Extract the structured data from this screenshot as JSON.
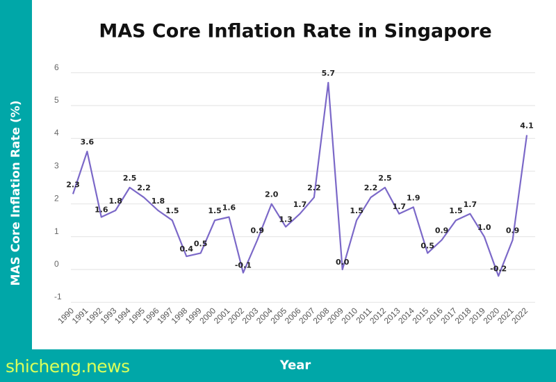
{
  "chart_data": {
    "type": "line",
    "title": "MAS Core Inflation Rate in Singapore",
    "xlabel": "Year",
    "ylabel": "MAS Core Inflation Rate (%)",
    "ylim": [
      -1,
      6
    ],
    "yticks": [
      -1,
      0,
      1,
      2,
      3,
      4,
      5,
      6
    ],
    "grid": true,
    "line_color": "#7b68c8",
    "categories": [
      "1990",
      "1991",
      "1992",
      "1993",
      "1994",
      "1995",
      "1996",
      "1997",
      "1998",
      "1999",
      "2000",
      "2001",
      "2002",
      "2003",
      "2004",
      "2005",
      "2006",
      "2007",
      "2008",
      "2009",
      "2010",
      "2011",
      "2012",
      "2013",
      "2014",
      "2015",
      "2016",
      "2017",
      "2018",
      "2019",
      "2020",
      "2021",
      "2022"
    ],
    "values": [
      2.3,
      3.6,
      1.6,
      1.8,
      2.5,
      2.2,
      1.8,
      1.5,
      0.4,
      0.5,
      1.5,
      1.6,
      -0.1,
      0.9,
      2.0,
      1.3,
      1.7,
      2.2,
      5.7,
      0.0,
      1.5,
      2.2,
      2.5,
      1.7,
      1.9,
      0.5,
      0.9,
      1.5,
      1.7,
      1.0,
      -0.2,
      0.9,
      4.1
    ],
    "data_labels": [
      "2.3",
      "3.6",
      "1.6",
      "1.8",
      "2.5",
      "2.2",
      "1.8",
      "1.5",
      "0.4",
      "0.5",
      "1.5",
      "1.6",
      "-0.1",
      "0.9",
      "2.0",
      "1.3",
      "1.7",
      "2.2",
      "5.7",
      "0.0",
      "1.5",
      "2.2",
      "2.5",
      "1.7",
      "1.9",
      "0.5",
      "0.9",
      "1.5",
      "1.7",
      "1.0",
      "-0.2",
      "0.9",
      "4.1"
    ]
  },
  "watermark": "shicheng.news",
  "colors": {
    "band": "#00a7a8",
    "watermark": "#d9ff5a"
  }
}
